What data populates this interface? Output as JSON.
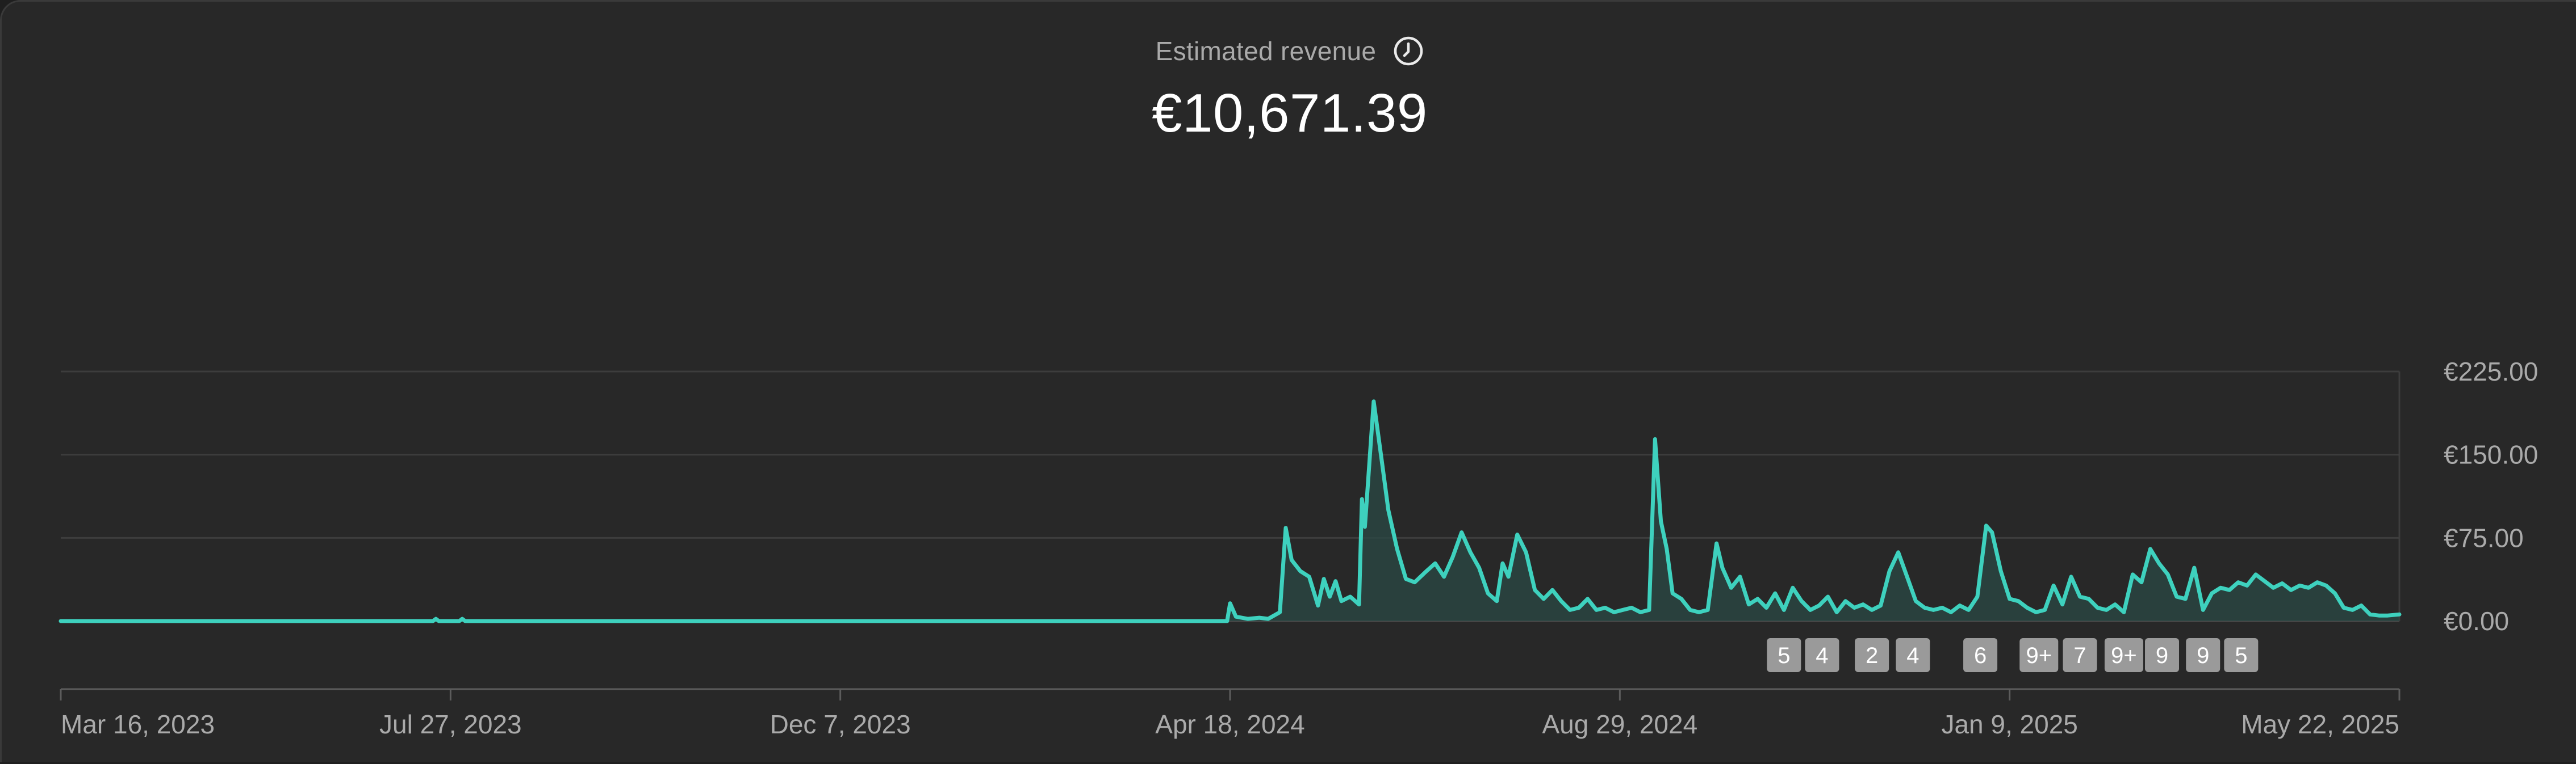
{
  "header": {
    "metric_label": "Estimated revenue",
    "metric_value": "€10,671.39",
    "info_icon": "clock-icon"
  },
  "colors": {
    "background": "#282828",
    "line": "#3ed1be",
    "area": "#2a4844",
    "grid": "#3d3d3d",
    "axis": "#5c5c5c",
    "text_muted": "#aaaaaa",
    "marker_bg": "#9a9a9a"
  },
  "chart_data": {
    "type": "area",
    "title": "",
    "xlabel": "",
    "ylabel": "",
    "x_range": [
      "2023-03-16",
      "2025-05-22"
    ],
    "ylim": [
      0,
      225
    ],
    "y_ticks": [
      {
        "value": 0,
        "label": "€0.00"
      },
      {
        "value": 75,
        "label": "€75.00"
      },
      {
        "value": 150,
        "label": "€150.00"
      },
      {
        "value": 225,
        "label": "€225.00"
      }
    ],
    "x_ticks": [
      {
        "date": "2023-03-16",
        "label": "Mar 16, 2023"
      },
      {
        "date": "2023-07-27",
        "label": "Jul 27, 2023"
      },
      {
        "date": "2023-12-07",
        "label": "Dec 7, 2023"
      },
      {
        "date": "2024-04-18",
        "label": "Apr 18, 2024"
      },
      {
        "date": "2024-08-29",
        "label": "Aug 29, 2024"
      },
      {
        "date": "2025-01-09",
        "label": "Jan 9, 2025"
      },
      {
        "date": "2025-05-22",
        "label": "May 22, 2025"
      }
    ],
    "grid": true,
    "series": [
      {
        "points": [
          [
            "2023-03-16",
            0
          ],
          [
            "2023-07-21",
            0
          ],
          [
            "2023-07-22",
            2
          ],
          [
            "2023-07-23",
            0
          ],
          [
            "2023-07-30",
            0
          ],
          [
            "2023-07-31",
            2
          ],
          [
            "2023-08-01",
            0
          ],
          [
            "2024-04-17",
            0
          ],
          [
            "2024-04-18",
            16
          ],
          [
            "2024-04-20",
            4
          ],
          [
            "2024-04-24",
            2
          ],
          [
            "2024-04-28",
            3
          ],
          [
            "2024-05-01",
            2
          ],
          [
            "2024-05-05",
            8
          ],
          [
            "2024-05-07",
            84
          ],
          [
            "2024-05-09",
            55
          ],
          [
            "2024-05-12",
            45
          ],
          [
            "2024-05-15",
            40
          ],
          [
            "2024-05-18",
            14
          ],
          [
            "2024-05-20",
            38
          ],
          [
            "2024-05-22",
            22
          ],
          [
            "2024-05-24",
            36
          ],
          [
            "2024-05-26",
            18
          ],
          [
            "2024-05-29",
            22
          ],
          [
            "2024-06-01",
            15
          ],
          [
            "2024-06-02",
            110
          ],
          [
            "2024-06-03",
            85
          ],
          [
            "2024-06-06",
            198
          ],
          [
            "2024-06-09",
            140
          ],
          [
            "2024-06-11",
            100
          ],
          [
            "2024-06-14",
            65
          ],
          [
            "2024-06-17",
            38
          ],
          [
            "2024-06-20",
            35
          ],
          [
            "2024-06-24",
            45
          ],
          [
            "2024-06-27",
            52
          ],
          [
            "2024-06-30",
            40
          ],
          [
            "2024-07-03",
            58
          ],
          [
            "2024-07-06",
            80
          ],
          [
            "2024-07-09",
            62
          ],
          [
            "2024-07-12",
            48
          ],
          [
            "2024-07-15",
            25
          ],
          [
            "2024-07-18",
            18
          ],
          [
            "2024-07-20",
            52
          ],
          [
            "2024-07-22",
            40
          ],
          [
            "2024-07-25",
            78
          ],
          [
            "2024-07-28",
            62
          ],
          [
            "2024-07-31",
            28
          ],
          [
            "2024-08-03",
            20
          ],
          [
            "2024-08-06",
            28
          ],
          [
            "2024-08-09",
            18
          ],
          [
            "2024-08-12",
            10
          ],
          [
            "2024-08-15",
            12
          ],
          [
            "2024-08-18",
            20
          ],
          [
            "2024-08-21",
            10
          ],
          [
            "2024-08-24",
            12
          ],
          [
            "2024-08-27",
            8
          ],
          [
            "2024-08-30",
            10
          ],
          [
            "2024-09-02",
            12
          ],
          [
            "2024-09-05",
            8
          ],
          [
            "2024-09-08",
            10
          ],
          [
            "2024-09-10",
            164
          ],
          [
            "2024-09-12",
            90
          ],
          [
            "2024-09-14",
            65
          ],
          [
            "2024-09-16",
            25
          ],
          [
            "2024-09-19",
            20
          ],
          [
            "2024-09-22",
            10
          ],
          [
            "2024-09-25",
            8
          ],
          [
            "2024-09-28",
            10
          ],
          [
            "2024-10-01",
            70
          ],
          [
            "2024-10-03",
            48
          ],
          [
            "2024-10-06",
            30
          ],
          [
            "2024-10-09",
            40
          ],
          [
            "2024-10-12",
            15
          ],
          [
            "2024-10-15",
            20
          ],
          [
            "2024-10-18",
            12
          ],
          [
            "2024-10-21",
            25
          ],
          [
            "2024-10-24",
            10
          ],
          [
            "2024-10-27",
            30
          ],
          [
            "2024-10-30",
            18
          ],
          [
            "2024-11-02",
            10
          ],
          [
            "2024-11-05",
            14
          ],
          [
            "2024-11-08",
            22
          ],
          [
            "2024-11-11",
            8
          ],
          [
            "2024-11-14",
            18
          ],
          [
            "2024-11-17",
            12
          ],
          [
            "2024-11-20",
            15
          ],
          [
            "2024-11-23",
            10
          ],
          [
            "2024-11-26",
            14
          ],
          [
            "2024-11-29",
            45
          ],
          [
            "2024-12-02",
            62
          ],
          [
            "2024-12-05",
            40
          ],
          [
            "2024-12-08",
            18
          ],
          [
            "2024-12-11",
            12
          ],
          [
            "2024-12-14",
            10
          ],
          [
            "2024-12-17",
            12
          ],
          [
            "2024-12-20",
            8
          ],
          [
            "2024-12-23",
            14
          ],
          [
            "2024-12-26",
            10
          ],
          [
            "2024-12-29",
            22
          ],
          [
            "2025-01-01",
            86
          ],
          [
            "2025-01-03",
            80
          ],
          [
            "2025-01-06",
            45
          ],
          [
            "2025-01-09",
            20
          ],
          [
            "2025-01-12",
            18
          ],
          [
            "2025-01-15",
            12
          ],
          [
            "2025-01-18",
            8
          ],
          [
            "2025-01-21",
            10
          ],
          [
            "2025-01-24",
            32
          ],
          [
            "2025-01-27",
            15
          ],
          [
            "2025-01-30",
            40
          ],
          [
            "2025-02-02",
            22
          ],
          [
            "2025-02-05",
            20
          ],
          [
            "2025-02-08",
            12
          ],
          [
            "2025-02-11",
            10
          ],
          [
            "2025-02-14",
            15
          ],
          [
            "2025-02-17",
            8
          ],
          [
            "2025-02-20",
            42
          ],
          [
            "2025-02-23",
            35
          ],
          [
            "2025-02-26",
            65
          ],
          [
            "2025-03-01",
            52
          ],
          [
            "2025-03-04",
            42
          ],
          [
            "2025-03-07",
            22
          ],
          [
            "2025-03-10",
            20
          ],
          [
            "2025-03-13",
            48
          ],
          [
            "2025-03-16",
            10
          ],
          [
            "2025-03-19",
            25
          ],
          [
            "2025-03-22",
            30
          ],
          [
            "2025-03-25",
            28
          ],
          [
            "2025-03-28",
            35
          ],
          [
            "2025-03-31",
            32
          ],
          [
            "2025-04-03",
            42
          ],
          [
            "2025-04-06",
            36
          ],
          [
            "2025-04-09",
            30
          ],
          [
            "2025-04-12",
            34
          ],
          [
            "2025-04-15",
            28
          ],
          [
            "2025-04-18",
            32
          ],
          [
            "2025-04-21",
            30
          ],
          [
            "2025-04-24",
            35
          ],
          [
            "2025-04-27",
            32
          ],
          [
            "2025-04-30",
            25
          ],
          [
            "2025-05-03",
            12
          ],
          [
            "2025-05-06",
            10
          ],
          [
            "2025-05-09",
            14
          ],
          [
            "2025-05-12",
            6
          ],
          [
            "2025-05-15",
            5
          ],
          [
            "2025-05-18",
            5
          ],
          [
            "2025-05-22",
            6
          ]
        ]
      }
    ],
    "markers": [
      {
        "date": "2024-10-24",
        "label": "5"
      },
      {
        "date": "2024-11-06",
        "label": "4"
      },
      {
        "date": "2024-11-23",
        "label": "2"
      },
      {
        "date": "2024-12-07",
        "label": "4"
      },
      {
        "date": "2024-12-30",
        "label": "6"
      },
      {
        "date": "2025-01-19",
        "label": "9+"
      },
      {
        "date": "2025-02-02",
        "label": "7"
      },
      {
        "date": "2025-02-17",
        "label": "9+"
      },
      {
        "date": "2025-03-02",
        "label": "9"
      },
      {
        "date": "2025-03-16",
        "label": "9"
      },
      {
        "date": "2025-03-29",
        "label": "5"
      }
    ]
  }
}
